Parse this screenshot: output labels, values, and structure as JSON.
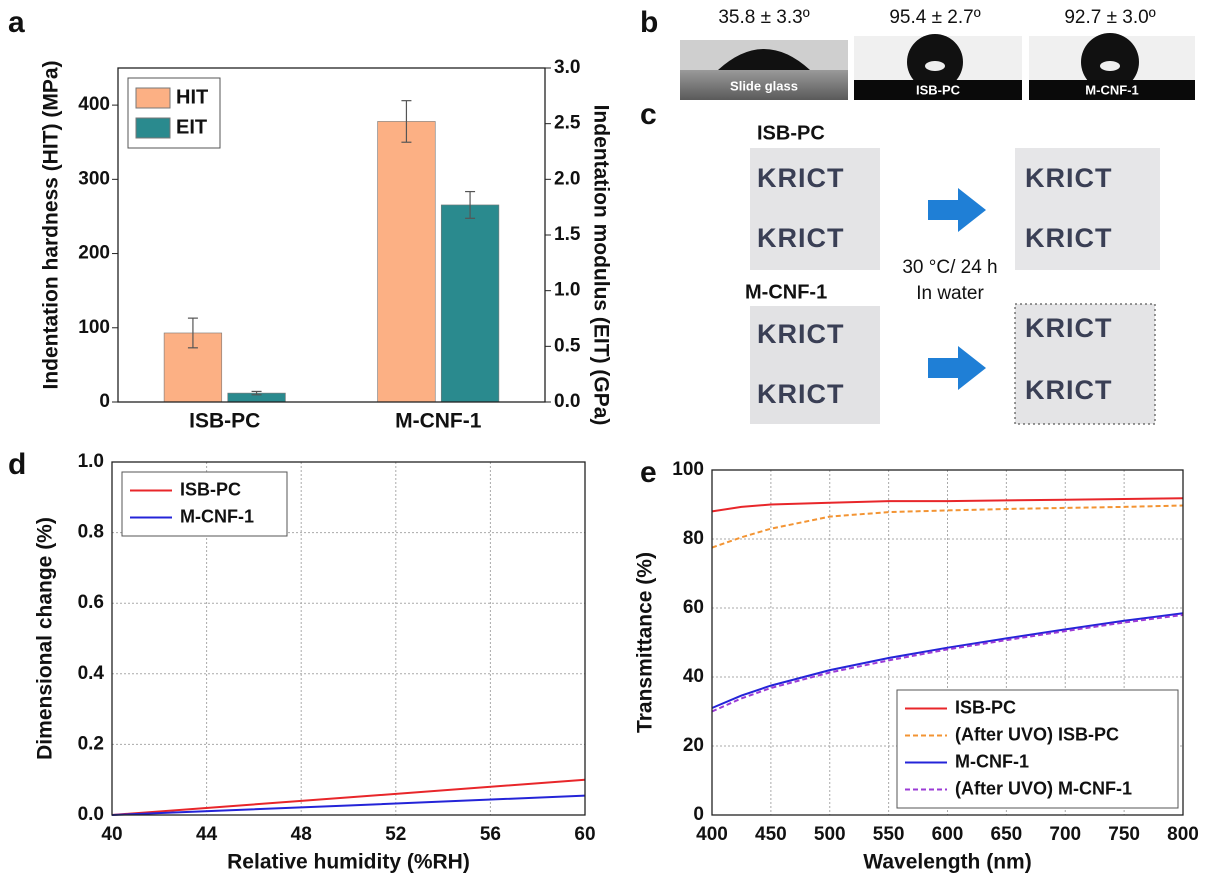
{
  "panel_labels": [
    "a",
    "b",
    "c",
    "d",
    "e"
  ],
  "chart_data": [
    {
      "type": "bar",
      "categories": [
        "ISB-PC",
        "M-CNF-1"
      ],
      "y_label": "Indentation hardness (HIT) (MPa)",
      "y2_label": "Indentation modulus (EIT) (GPa)",
      "ylim": [
        0,
        450
      ],
      "yticks": [
        0,
        100,
        200,
        300,
        400
      ],
      "y2lim": [
        0,
        3.0
      ],
      "y2ticks": [
        {
          "value": 0,
          "label": "0.0"
        },
        0.5,
        {
          "value": 1,
          "label": "1.0"
        },
        1.5,
        {
          "value": 2,
          "label": "2.0"
        },
        2.5,
        {
          "value": 3,
          "label": "3.0"
        }
      ],
      "legend": "upper left",
      "series": [
        {
          "name": "HIT",
          "color": "#fcb084",
          "values": [
            93,
            378
          ],
          "errors": [
            20,
            28
          ]
        },
        {
          "name": "EIT",
          "color": "#2a8a8e",
          "axis": "y2",
          "values": [
            0.08,
            1.77
          ],
          "errors": [
            0.015,
            0.12
          ]
        }
      ]
    },
    {
      "type": "line",
      "x_label": "Relative humidity (%RH)",
      "y_label": "Dimensional change (%)",
      "xlim": [
        40,
        60
      ],
      "xticks": [
        40,
        44,
        48,
        52,
        56,
        60
      ],
      "ylim": [
        0,
        1.0
      ],
      "yticks": [
        {
          "value": 0,
          "label": "0.0"
        },
        0.2,
        0.4,
        0.6,
        0.8,
        {
          "value": 1,
          "label": "1.0"
        }
      ],
      "grid": true,
      "legend": "upper left",
      "x": [
        40,
        50,
        60
      ],
      "series": [
        {
          "name": "ISB-PC",
          "color": "#e8262a",
          "linestyle": "solid",
          "values": [
            0,
            0.05,
            0.1
          ]
        },
        {
          "name": "M-CNF-1",
          "color": "#2424d8",
          "linestyle": "solid",
          "values": [
            0,
            0.027,
            0.055
          ]
        }
      ]
    },
    {
      "type": "line",
      "x_label": "Wavelength (nm)",
      "y_label": "Transmittance (%)",
      "xlim": [
        400,
        800
      ],
      "xticks": [
        400,
        450,
        500,
        550,
        600,
        650,
        700,
        750,
        800
      ],
      "ylim": [
        0,
        100
      ],
      "yticks": [
        0,
        20,
        40,
        60,
        80,
        100
      ],
      "grid": true,
      "legend": "lower right",
      "x": [
        400,
        425,
        450,
        500,
        550,
        600,
        650,
        700,
        750,
        800
      ],
      "series": [
        {
          "name": "ISB-PC",
          "color": "#e8262a",
          "linestyle": "solid",
          "values": [
            88,
            89.3,
            90,
            90.5,
            91,
            91,
            91.2,
            91.4,
            91.6,
            91.8
          ]
        },
        {
          "name": "(After UVO) ISB-PC",
          "color": "#f39433",
          "linestyle": "dashed",
          "values": [
            77.5,
            80.5,
            83,
            86.5,
            87.8,
            88.3,
            88.7,
            89,
            89.3,
            89.7
          ]
        },
        {
          "name": "M-CNF-1",
          "color": "#2424d8",
          "linestyle": "solid",
          "values": [
            31,
            34.6,
            37.5,
            42,
            45.5,
            48.5,
            51.2,
            53.8,
            56.3,
            58.5
          ]
        },
        {
          "name": "(After UVO) M-CNF-1",
          "color": "#9b3bd6",
          "linestyle": "dashed",
          "values": [
            30,
            33.8,
            36.8,
            41.3,
            44.8,
            48,
            50.7,
            53.3,
            55.8,
            58
          ]
        }
      ]
    }
  ],
  "contact_angle": {
    "angles": [
      "35.8 ± 3.3º",
      "95.4 ± 2.7º",
      "92.7 ± 3.0º"
    ],
    "substrates": [
      "Slide glass",
      "ISB-PC",
      "M-CNF-1"
    ]
  },
  "water_test": {
    "samples": [
      "ISB-PC",
      "M-CNF-1"
    ],
    "condition": [
      "30 °C/ 24 h",
      "In water"
    ],
    "logo": "KRICT"
  }
}
